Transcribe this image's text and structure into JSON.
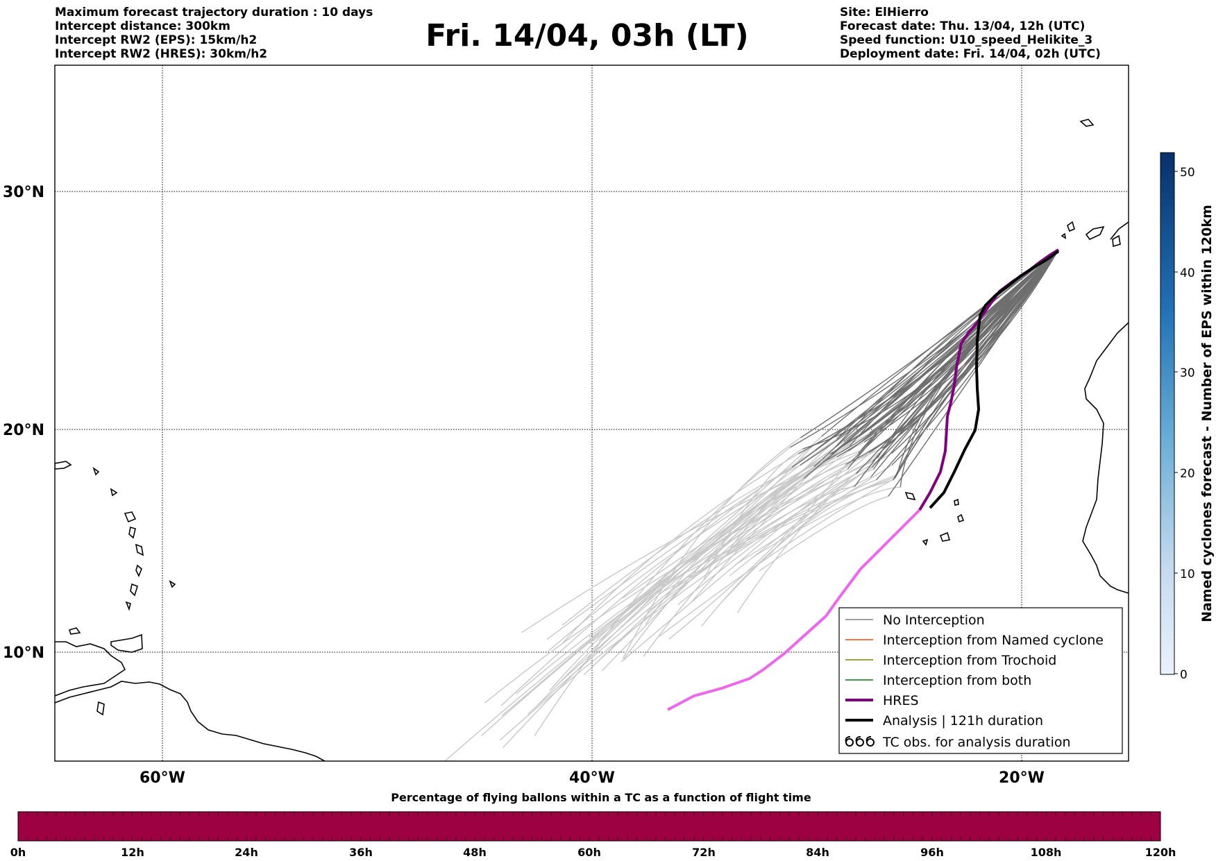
{
  "title": "Fri. 14/04, 03h (LT)",
  "header_left": [
    "Maximum forecast trajectory duration : 10 days",
    "Intercept distance: 300km",
    "Intercept RW2 (EPS):  15km/h2",
    "Intercept RW2 (HRES): 30km/h2"
  ],
  "header_right": [
    "Site: ElHierro",
    "Forecast date: Thu. 13/04, 12h (UTC)",
    "Speed function: U10_speed_Helikite_3",
    "Deployment date: Fri. 14/04, 02h (UTC)"
  ],
  "map": {
    "lat_labels": [
      "30°N",
      "20°N",
      "10°N"
    ],
    "lon_labels": [
      "60°W",
      "40°W",
      "20°W"
    ]
  },
  "legend": [
    {
      "label": "No Interception",
      "color": "#808080",
      "style": "line-thin"
    },
    {
      "label": "Interception from Named cyclone",
      "color": "#ff4500",
      "style": "line-thin"
    },
    {
      "label": "Interception from Trochoid",
      "color": "#808000",
      "style": "line-thin"
    },
    {
      "label": "Interception from both",
      "color": "#008000",
      "style": "line-thin"
    },
    {
      "label": "HRES",
      "color": "#800080",
      "style": "line-thick"
    },
    {
      "label": "Analysis | 121h duration",
      "color": "#000000",
      "style": "line-thick"
    },
    {
      "label": "TC obs. for analysis duration",
      "color": "#000000",
      "style": "cyclone-symbols"
    }
  ],
  "colorbar_right": {
    "label": "Named cyclones forecast - Number of EPS within 120km",
    "ticks": [
      "0",
      "10",
      "20",
      "30",
      "40",
      "50"
    ],
    "color_low": "#e8f0fa",
    "color_high": "#08306b"
  },
  "colorbar_bottom": {
    "title": "Percentage of flying ballons within a TC as a function of flight time",
    "ticks": [
      "0h",
      "12h",
      "24h",
      "36h",
      "48h",
      "60h",
      "72h",
      "84h",
      "96h",
      "108h",
      "120h"
    ],
    "fill_color": "#9e0142"
  },
  "colors": {
    "eps_recent": "#6e6e6e",
    "eps_older": "#c8c8c8",
    "hres_recent": "#800080",
    "hres_older": "#ee66ee",
    "analysis": "#000000"
  }
}
